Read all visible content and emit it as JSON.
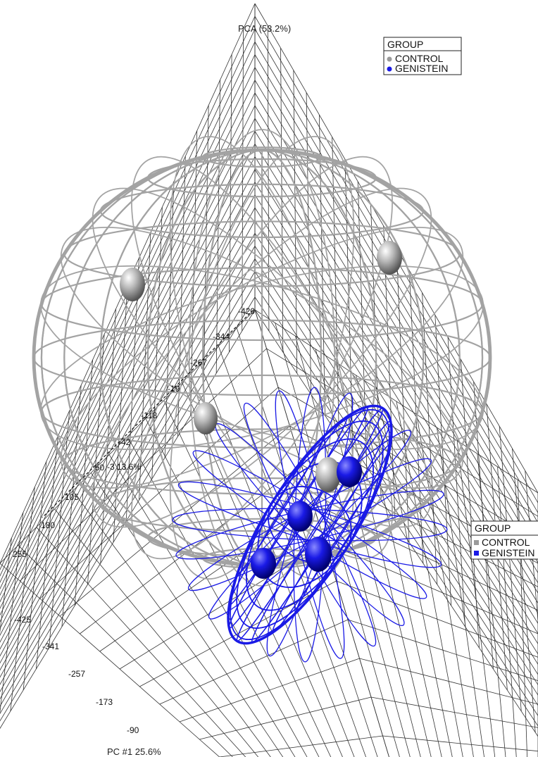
{
  "chart_data": {
    "type": "scatter",
    "title": "PCA (53.2%)",
    "axes": {
      "pc1": {
        "label": "PC #1 25.6%",
        "ticks": [
          "-425",
          "-341",
          "-257",
          "-173",
          "-90"
        ]
      },
      "pc2": {
        "label": "-3 13.6%",
        "ticks": [
          "-420",
          "-344",
          "-267",
          "-19",
          "-118",
          "-42",
          "50",
          "105",
          "180",
          "255"
        ]
      }
    },
    "series": [
      {
        "name": "CONTROL",
        "color": "#9a9a9a",
        "points_count": 5
      },
      {
        "name": "GENISTEIN",
        "color": "#1a1ae6",
        "points_count": 5
      }
    ],
    "legends": [
      {
        "title": "GROUP",
        "items": [
          "CONTROL",
          "GENISTEIN"
        ],
        "marker": "circle",
        "placement": "top-right"
      },
      {
        "title": "GROUP",
        "items": [
          "CONTROL",
          "GENISTEIN"
        ],
        "marker": "square",
        "placement": "right"
      }
    ]
  }
}
